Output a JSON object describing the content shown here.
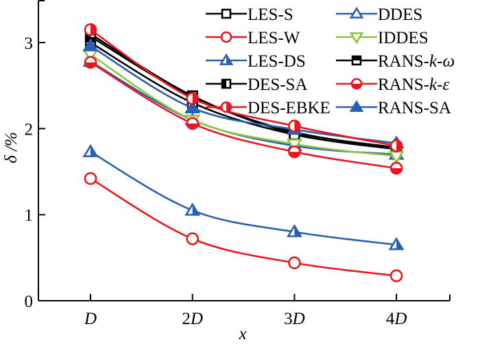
{
  "chart_data": {
    "type": "line",
    "title": "",
    "xlabel": "x",
    "ylabel": "δ /%",
    "categories": [
      "D",
      "2D",
      "3D",
      "4D"
    ],
    "x": [
      1,
      2,
      3,
      4
    ],
    "xlim": [
      0.5,
      4.5
    ],
    "ylim": [
      0,
      3.5
    ],
    "yticks": [
      0,
      1,
      2,
      3
    ],
    "xticks": [
      {
        "value": 1,
        "prefix": "",
        "italic": "D"
      },
      {
        "value": 2,
        "prefix": "2",
        "italic": "D"
      },
      {
        "value": 3,
        "prefix": "3",
        "italic": "D"
      },
      {
        "value": 4,
        "prefix": "4",
        "italic": "D"
      }
    ],
    "grid": false,
    "legend_position": "top-right",
    "series": [
      {
        "name": "LES-S",
        "label_parts": [
          {
            "t": "LES-S"
          }
        ],
        "color": "#000000",
        "marker": "square",
        "fill": "none",
        "values": [
          3.07,
          2.37,
          1.96,
          1.78
        ]
      },
      {
        "name": "LES-W",
        "label_parts": [
          {
            "t": "LES-W"
          }
        ],
        "color": "#e8171f",
        "marker": "circle",
        "fill": "none",
        "values": [
          1.42,
          0.72,
          0.44,
          0.29
        ]
      },
      {
        "name": "LES-DS",
        "label_parts": [
          {
            "t": "LES-DS"
          }
        ],
        "color": "#2a5eb0",
        "marker": "triangle",
        "fill": "right",
        "values": [
          1.73,
          1.05,
          0.8,
          0.65
        ]
      },
      {
        "name": "DES-SA",
        "label_parts": [
          {
            "t": "DES-SA"
          }
        ],
        "color": "#000000",
        "marker": "square",
        "fill": "left",
        "values": [
          3.1,
          2.38,
          1.94,
          1.76
        ]
      },
      {
        "name": "DES-EBKE",
        "label_parts": [
          {
            "t": "DES-EBKE"
          }
        ],
        "color": "#e8171f",
        "marker": "circle",
        "fill": "right",
        "values": [
          3.15,
          2.35,
          2.03,
          1.8
        ]
      },
      {
        "name": "DDES",
        "label_parts": [
          {
            "t": "DDES"
          }
        ],
        "color": "#2a5eb0",
        "marker": "triangle",
        "fill": "none",
        "values": [
          2.78,
          2.1,
          1.8,
          1.7
        ]
      },
      {
        "name": "IDDES",
        "label_parts": [
          {
            "t": "IDDES"
          }
        ],
        "color": "#8cc63f",
        "marker": "triangle-down",
        "fill": "none",
        "values": [
          2.86,
          2.1,
          1.82,
          1.68
        ]
      },
      {
        "name": "RANS-k-ω",
        "label_parts": [
          {
            "t": "RANS-"
          },
          {
            "t": "k",
            "i": true
          },
          {
            "t": "-"
          },
          {
            "t": "ω",
            "i": true
          }
        ],
        "color": "#000000",
        "marker": "square",
        "fill": "top",
        "values": [
          3.0,
          2.3,
          1.93,
          1.77
        ]
      },
      {
        "name": "RANS-k-ε",
        "label_parts": [
          {
            "t": "RANS-"
          },
          {
            "t": "k",
            "i": true
          },
          {
            "t": "-"
          },
          {
            "t": "ε",
            "i": true
          }
        ],
        "color": "#e8171f",
        "marker": "circle",
        "fill": "bottom",
        "values": [
          2.77,
          2.06,
          1.73,
          1.54
        ]
      },
      {
        "name": "RANS-SA",
        "label_parts": [
          {
            "t": "RANS-SA"
          }
        ],
        "color": "#2a5eb0",
        "marker": "triangle",
        "fill": "full",
        "values": [
          2.96,
          2.24,
          1.99,
          1.83
        ]
      }
    ]
  }
}
